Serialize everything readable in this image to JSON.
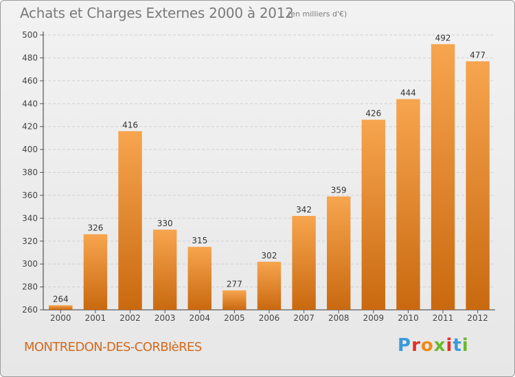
{
  "header": {
    "title": "Achats et Charges Externes 2000 à 2012",
    "subtitle": "(en milliers d'€)"
  },
  "footer": {
    "commune": "MONTREDON-DES-CORBIèRES",
    "logo_text": "Proxiti"
  },
  "colors": {
    "bar_light": "#f7a54f",
    "bar_dark": "#c9690f",
    "title": "#7a7a7a",
    "commune": "#d4691c",
    "logo": [
      "#3a9ad9",
      "#e0302a",
      "#f08a18",
      "#6bb82d",
      "#e0302a",
      "#3a9ad9",
      "#6bb82d"
    ]
  },
  "chart_data": {
    "type": "bar",
    "title": "Achats et Charges Externes 2000 à 2012",
    "subtitle": "(en milliers d'€)",
    "categories": [
      "2000",
      "2001",
      "2002",
      "2003",
      "2004",
      "2005",
      "2006",
      "2007",
      "2008",
      "2009",
      "2010",
      "2011",
      "2012"
    ],
    "values": [
      264,
      326,
      416,
      330,
      315,
      277,
      302,
      342,
      359,
      426,
      444,
      492,
      477
    ],
    "ylim": [
      260,
      500
    ],
    "yticks": [
      260,
      280,
      300,
      320,
      340,
      360,
      380,
      400,
      420,
      440,
      460,
      480,
      500
    ],
    "grid": true,
    "data_labels": true
  }
}
